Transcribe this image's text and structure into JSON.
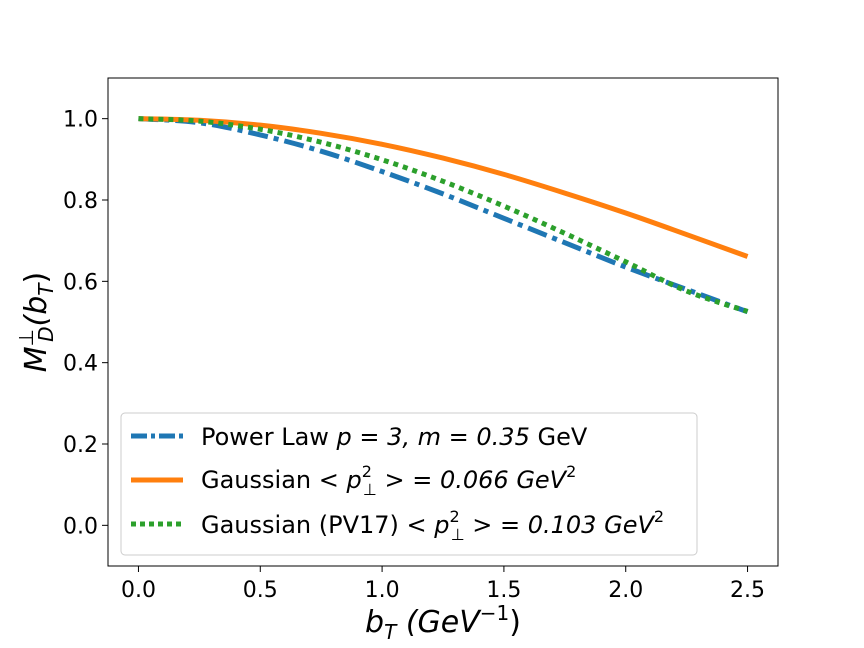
{
  "chart_data": {
    "type": "line",
    "title": "",
    "xlabel": "b_T (GeV^-1)",
    "ylabel": "M_D^⊥(b_T)",
    "xlim": [
      -0.125,
      2.625
    ],
    "ylim": [
      -0.1,
      1.1
    ],
    "xticks": [
      0.0,
      0.5,
      1.0,
      1.5,
      2.0,
      2.5
    ],
    "yticks": [
      0.0,
      0.2,
      0.4,
      0.6,
      0.8,
      1.0
    ],
    "xtick_labels": [
      "0.0",
      "0.5",
      "1.0",
      "1.5",
      "2.0",
      "2.5"
    ],
    "ytick_labels": [
      "0.0",
      "0.2",
      "0.4",
      "0.6",
      "0.8",
      "1.0"
    ],
    "grid": false,
    "legend_position": "lower-left",
    "series": [
      {
        "name": "Power Law p = 3, m = 0.35 GeV",
        "color": "#1f77b4",
        "style": "dashdot",
        "x": [
          0.0,
          0.25,
          0.5,
          0.75,
          1.0,
          1.25,
          1.5,
          1.75,
          2.0,
          2.25,
          2.5
        ],
        "y": [
          1.0,
          0.99,
          0.96,
          0.92,
          0.87,
          0.815,
          0.755,
          0.695,
          0.635,
          0.58,
          0.525
        ]
      },
      {
        "name": "Gaussian <p_⊥^2> = 0.066 GeV^2",
        "color": "#ff7f0e",
        "style": "solid",
        "x": [
          0.0,
          0.25,
          0.5,
          0.75,
          1.0,
          1.25,
          1.5,
          1.75,
          2.0,
          2.25,
          2.5
        ],
        "y": [
          1.0,
          0.996,
          0.984,
          0.964,
          0.937,
          0.903,
          0.863,
          0.817,
          0.768,
          0.715,
          0.661
        ]
      },
      {
        "name": "Gaussian (PV17) <p_⊥^2> = 0.103 GeV^2",
        "color": "#2ca02c",
        "style": "dotted",
        "x": [
          0.0,
          0.25,
          0.5,
          0.75,
          1.0,
          1.25,
          1.5,
          1.75,
          2.0,
          2.25,
          2.5
        ],
        "y": [
          1.0,
          0.994,
          0.974,
          0.942,
          0.899,
          0.846,
          0.785,
          0.718,
          0.648,
          0.576,
          0.526
        ]
      }
    ]
  },
  "legend": {
    "power_law_prefix": "Power Law ",
    "power_law_math": "p = 3, m = 0.35",
    "power_law_unit": " GeV",
    "gaussian_prefix": "Gaussian ",
    "gaussian_math_a": "< p",
    "gaussian_math_b": " > = 0.066 ",
    "gaussian_unit": "GeV",
    "pv17_prefix": "Gaussian (PV17) ",
    "pv17_math_a": "< p",
    "pv17_math_b": " > = 0.103 ",
    "pv17_unit": "GeV",
    "sup_2": "2",
    "sub_perp": "⊥"
  },
  "axes_text": {
    "x_main": "b",
    "x_sub": "T",
    "x_paren": " (GeV",
    "x_exp": "−1",
    "x_close": ")",
    "y_main": "M",
    "y_sup": "⊥",
    "y_sub": "D",
    "y_paren": "(b",
    "y_sub2": "T",
    "y_close": ")"
  }
}
